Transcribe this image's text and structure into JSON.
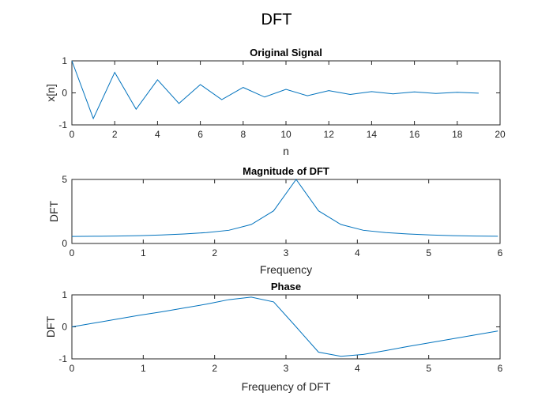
{
  "figure": {
    "title": "DFT"
  },
  "colors": {
    "series": "#0072bd",
    "axis": "#262626"
  },
  "chart_data": [
    {
      "type": "line",
      "title": "Original Signal",
      "xlabel": "n",
      "ylabel": "x[n]",
      "xlim": [
        0,
        20
      ],
      "ylim": [
        -1,
        1
      ],
      "xticks": [
        0,
        2,
        4,
        6,
        8,
        10,
        12,
        14,
        16,
        18,
        20
      ],
      "yticks": [
        -1,
        0,
        1
      ],
      "x": [
        0,
        1,
        2,
        3,
        4,
        5,
        6,
        7,
        8,
        9,
        10,
        11,
        12,
        13,
        14,
        15,
        16,
        17,
        18,
        19
      ],
      "y": [
        1,
        -0.8,
        0.64,
        -0.51,
        0.41,
        -0.33,
        0.26,
        -0.21,
        0.17,
        -0.13,
        0.11,
        -0.09,
        0.07,
        -0.05,
        0.04,
        -0.03,
        0.03,
        -0.02,
        0.02,
        -0.01
      ],
      "grid": false,
      "legend": "none"
    },
    {
      "type": "line",
      "title": "Magnitude of DFT",
      "xlabel": "Frequency",
      "ylabel": "DFT",
      "xlim": [
        0,
        6
      ],
      "ylim": [
        0,
        5
      ],
      "xticks": [
        0,
        1,
        2,
        3,
        4,
        5,
        6
      ],
      "yticks": [
        0,
        5
      ],
      "x": [
        0,
        0.314,
        0.628,
        0.942,
        1.257,
        1.571,
        1.885,
        2.199,
        2.513,
        2.827,
        3.142,
        3.456,
        3.77,
        4.084,
        4.398,
        4.712,
        5.027,
        5.341,
        5.655,
        5.969
      ],
      "y": [
        0.55,
        0.56,
        0.58,
        0.61,
        0.66,
        0.74,
        0.85,
        1.03,
        1.48,
        2.55,
        5.0,
        2.55,
        1.48,
        1.03,
        0.85,
        0.74,
        0.66,
        0.61,
        0.58,
        0.56
      ],
      "grid": false,
      "legend": "none"
    },
    {
      "type": "line",
      "title": "Phase",
      "xlabel": "Frequency of DFT",
      "ylabel": "DFT",
      "xlim": [
        0,
        6
      ],
      "ylim": [
        -1,
        1
      ],
      "xticks": [
        0,
        1,
        2,
        3,
        4,
        5,
        6
      ],
      "yticks": [
        -1,
        0,
        1
      ],
      "x": [
        0,
        0.314,
        0.628,
        0.942,
        1.257,
        1.571,
        1.885,
        2.199,
        2.513,
        2.827,
        3.142,
        3.456,
        3.77,
        4.084,
        4.398,
        4.712,
        5.027,
        5.341,
        5.655,
        5.969
      ],
      "y": [
        0.0,
        0.12,
        0.24,
        0.36,
        0.47,
        0.59,
        0.71,
        0.85,
        0.93,
        0.78,
        0.0,
        -0.79,
        -0.92,
        -0.86,
        -0.74,
        -0.61,
        -0.49,
        -0.37,
        -0.25,
        -0.13
      ],
      "grid": false,
      "legend": "none"
    }
  ]
}
